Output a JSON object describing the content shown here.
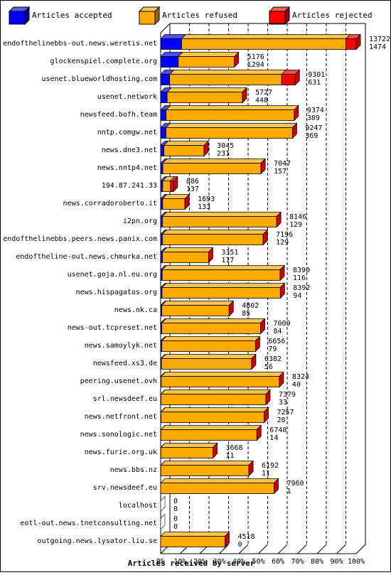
{
  "chart_data": {
    "type": "bar",
    "orientation": "horizontal",
    "stacked": true,
    "xlabel": "Articles received by server",
    "ylabel": "",
    "xlim": [
      0,
      100
    ],
    "x_unit": "%",
    "xticks": [
      "0%",
      "10%",
      "20%",
      "30%",
      "40%",
      "50%",
      "60%",
      "70%",
      "80%",
      "90%",
      "100%"
    ],
    "grid": true,
    "legend": {
      "position": "top",
      "items": [
        {
          "label": "Articles accepted",
          "color": "#0000ff"
        },
        {
          "label": "Articles refused",
          "color": "#ffaa00"
        },
        {
          "label": "Articles rejected",
          "color": "#ff0000"
        }
      ]
    },
    "servers": [
      {
        "name": "endofthelinebbs-out.news.weretis.net",
        "total": "13722",
        "accepted": "1474",
        "acc_pct": 10.7,
        "ref_pct": 84.0,
        "rej_pct": 5.3
      },
      {
        "name": "glockenspiel.complete.org",
        "total": "5176",
        "accepted": "1294",
        "acc_pct": 9.0,
        "ref_pct": 28.7,
        "rej_pct": 0
      },
      {
        "name": "usenet.blueworldhosting.com",
        "total": "9301",
        "accepted": "631",
        "acc_pct": 4.6,
        "ref_pct": 57.3,
        "rej_pct": 6.9
      },
      {
        "name": "usenet.network",
        "total": "5727",
        "accepted": "448",
        "acc_pct": 3.3,
        "ref_pct": 38.5,
        "rej_pct": 0
      },
      {
        "name": "newsfeed.bofh.team",
        "total": "9374",
        "accepted": "389",
        "acc_pct": 2.8,
        "ref_pct": 65.5,
        "rej_pct": 0
      },
      {
        "name": "nntp.comgw.net",
        "total": "9247",
        "accepted": "369",
        "acc_pct": 2.7,
        "ref_pct": 64.7,
        "rej_pct": 0
      },
      {
        "name": "news.dne3.net",
        "total": "3045",
        "accepted": "231",
        "acc_pct": 1.7,
        "ref_pct": 20.5,
        "rej_pct": 0
      },
      {
        "name": "news.nntp4.net",
        "total": "7047",
        "accepted": "157",
        "acc_pct": 1.1,
        "ref_pct": 50.2,
        "rej_pct": 0
      },
      {
        "name": "194.87.241.33",
        "total": "886",
        "accepted": "137",
        "acc_pct": 1.0,
        "ref_pct": 4.0,
        "rej_pct": 1.5
      },
      {
        "name": "news.corradoroberto.it",
        "total": "1693",
        "accepted": "133",
        "acc_pct": 1.0,
        "ref_pct": 11.4,
        "rej_pct": 0
      },
      {
        "name": "i2pn.org",
        "total": "8146",
        "accepted": "129",
        "acc_pct": 0.9,
        "ref_pct": 58.4,
        "rej_pct": 0
      },
      {
        "name": "endofthelinebbs.peers.news.panix.com",
        "total": "7196",
        "accepted": "129",
        "acc_pct": 0.9,
        "ref_pct": 51.5,
        "rej_pct": 0
      },
      {
        "name": "endoftheline-out.news.chmurka.net",
        "total": "3351",
        "accepted": "117",
        "acc_pct": 0.9,
        "ref_pct": 23.6,
        "rej_pct": 0
      },
      {
        "name": "usenet.goja.nl.eu.org",
        "total": "8390",
        "accepted": "116",
        "acc_pct": 0.8,
        "ref_pct": 60.3,
        "rej_pct": 0
      },
      {
        "name": "news.hispagatos.org",
        "total": "8392",
        "accepted": "94",
        "acc_pct": 0.7,
        "ref_pct": 60.5,
        "rej_pct": 0
      },
      {
        "name": "news.nk.ca",
        "total": "4802",
        "accepted": "85",
        "acc_pct": 0.6,
        "ref_pct": 34.4,
        "rej_pct": 0
      },
      {
        "name": "news-out.tcpreset.net",
        "total": "7009",
        "accepted": "84",
        "acc_pct": 0.6,
        "ref_pct": 50.5,
        "rej_pct": 0
      },
      {
        "name": "news.samoylyk.net",
        "total": "6656",
        "accepted": "79",
        "acc_pct": 0.6,
        "ref_pct": 47.9,
        "rej_pct": 0
      },
      {
        "name": "newsfeed.xs3.de",
        "total": "6382",
        "accepted": "56",
        "acc_pct": 0.4,
        "ref_pct": 46.1,
        "rej_pct": 0
      },
      {
        "name": "peering.usenet.ovh",
        "total": "8324",
        "accepted": "40",
        "acc_pct": 0.3,
        "ref_pct": 60.4,
        "rej_pct": 0
      },
      {
        "name": "srl.newsdeef.eu",
        "total": "7379",
        "accepted": "33",
        "acc_pct": 0.2,
        "ref_pct": 53.6,
        "rej_pct": 0
      },
      {
        "name": "news.netfront.net",
        "total": "7257",
        "accepted": "28",
        "acc_pct": 0.2,
        "ref_pct": 52.7,
        "rej_pct": 0
      },
      {
        "name": "news.sonologic.net",
        "total": "6748",
        "accepted": "14",
        "acc_pct": 0.1,
        "ref_pct": 49.1,
        "rej_pct": 0
      },
      {
        "name": "news.furie.org.uk",
        "total": "3668",
        "accepted": "11",
        "acc_pct": 0.1,
        "ref_pct": 26.6,
        "rej_pct": 0
      },
      {
        "name": "news.bbs.nz",
        "total": "6192",
        "accepted": "11",
        "acc_pct": 0.1,
        "ref_pct": 45.0,
        "rej_pct": 0
      },
      {
        "name": "srv.newsdeef.eu",
        "total": "7960",
        "accepted": "1",
        "acc_pct": 0,
        "ref_pct": 58.0,
        "rej_pct": 0
      },
      {
        "name": "localhost",
        "total": "0",
        "accepted": "0",
        "acc_pct": 0,
        "ref_pct": 0,
        "rej_pct": 0
      },
      {
        "name": "eotl-out.news.tnetconsulting.net",
        "total": "0",
        "accepted": "0",
        "acc_pct": 0,
        "ref_pct": 0,
        "rej_pct": 0
      },
      {
        "name": "outgoing.news.lysator.liu.se",
        "total": "4518",
        "accepted": "0",
        "acc_pct": 0,
        "ref_pct": 32.9,
        "rej_pct": 0
      }
    ]
  }
}
